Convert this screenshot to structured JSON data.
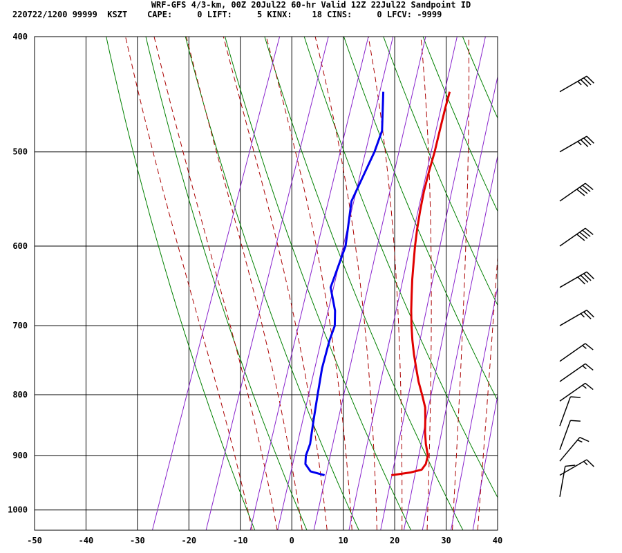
{
  "header": {
    "line1": "WRF-GFS 4/3-km, 00Z 20Jul22 60-hr Valid 12Z 22Jul22 Sandpoint ID",
    "line2": "220722/1200 99999  KSZT    CAPE:     0 LIFT:     5 KINX:    18 CINS:     0 LFCV: -9999"
  },
  "chart_data": {
    "type": "line",
    "title": "WRF-GFS 4/3-km, 00Z 20Jul22 60-hr Valid 12Z 22Jul22 Sandpoint ID",
    "xlabel": "",
    "ylabel": "",
    "xlim": [
      -50,
      40
    ],
    "ylim": [
      1040,
      400
    ],
    "yscale": "log",
    "x_ticks": [
      -50,
      -40,
      -30,
      -20,
      -10,
      0,
      10,
      20,
      30,
      40
    ],
    "y_ticks": [
      400,
      500,
      600,
      700,
      800,
      900,
      1000
    ],
    "grid": true,
    "series": [
      {
        "color": "#e00000",
        "points": [
          {
            "p": 935,
            "t": 15.5
          },
          {
            "p": 930,
            "t": 19.0
          },
          {
            "p": 925,
            "t": 21.0
          },
          {
            "p": 915,
            "t": 21.4
          },
          {
            "p": 900,
            "t": 21.2
          },
          {
            "p": 880,
            "t": 20.0
          },
          {
            "p": 860,
            "t": 19.0
          },
          {
            "p": 840,
            "t": 18.2
          },
          {
            "p": 820,
            "t": 17.3
          },
          {
            "p": 800,
            "t": 15.8
          },
          {
            "p": 780,
            "t": 14.2
          },
          {
            "p": 760,
            "t": 12.8
          },
          {
            "p": 740,
            "t": 11.4
          },
          {
            "p": 720,
            "t": 10.1
          },
          {
            "p": 700,
            "t": 8.9
          },
          {
            "p": 680,
            "t": 7.8
          },
          {
            "p": 660,
            "t": 6.8
          },
          {
            "p": 640,
            "t": 5.8
          },
          {
            "p": 620,
            "t": 4.9
          },
          {
            "p": 600,
            "t": 4.0
          },
          {
            "p": 580,
            "t": 3.2
          },
          {
            "p": 560,
            "t": 2.5
          },
          {
            "p": 540,
            "t": 1.9
          },
          {
            "p": 520,
            "t": 1.5
          },
          {
            "p": 500,
            "t": 1.2
          },
          {
            "p": 480,
            "t": 0.7
          },
          {
            "p": 460,
            "t": 0.2
          },
          {
            "p": 445,
            "t": -0.1
          }
        ]
      },
      {
        "color": "#0000ee",
        "points": [
          {
            "p": 935,
            "t": 2.5
          },
          {
            "p": 928,
            "t": -0.5
          },
          {
            "p": 915,
            "t": -2.0
          },
          {
            "p": 900,
            "t": -2.5
          },
          {
            "p": 880,
            "t": -2.5
          },
          {
            "p": 860,
            "t": -3.0
          },
          {
            "p": 840,
            "t": -3.5
          },
          {
            "p": 800,
            "t": -4.5
          },
          {
            "p": 760,
            "t": -5.5
          },
          {
            "p": 720,
            "t": -6.0
          },
          {
            "p": 700,
            "t": -6.0
          },
          {
            "p": 680,
            "t": -7.0
          },
          {
            "p": 650,
            "t": -9.5
          },
          {
            "p": 600,
            "t": -9.5
          },
          {
            "p": 550,
            "t": -11.5
          },
          {
            "p": 500,
            "t": -10.5
          },
          {
            "p": 480,
            "t": -10.5
          },
          {
            "p": 445,
            "t": -13.0
          }
        ]
      }
    ],
    "background_lines": {
      "dry_adiabats_K": [
        263,
        273,
        283,
        293,
        303,
        313,
        323,
        333,
        343,
        353,
        363,
        373
      ],
      "moist_adiabats_C": [
        -10,
        -5,
        0,
        5,
        10,
        15,
        20,
        25,
        30,
        35
      ],
      "mixing_ratios_gkg": [
        0.4,
        1,
        2,
        3,
        5,
        8,
        12,
        16,
        20,
        28,
        36
      ],
      "dry_color": "#008000",
      "moist_color": "#aa0000",
      "mixing_color": "#8822cc"
    },
    "wind_barbs": [
      {
        "p": 445,
        "dir": 240,
        "spd": 35
      },
      {
        "p": 500,
        "dir": 240,
        "spd": 35
      },
      {
        "p": 550,
        "dir": 235,
        "spd": 40
      },
      {
        "p": 600,
        "dir": 235,
        "spd": 40
      },
      {
        "p": 650,
        "dir": 240,
        "spd": 40
      },
      {
        "p": 700,
        "dir": 240,
        "spd": 25
      },
      {
        "p": 750,
        "dir": 235,
        "spd": 15
      },
      {
        "p": 780,
        "dir": 235,
        "spd": 15
      },
      {
        "p": 810,
        "dir": 235,
        "spd": 15
      },
      {
        "p": 850,
        "dir": 200,
        "spd": 10
      },
      {
        "p": 890,
        "dir": 200,
        "spd": 10
      },
      {
        "p": 910,
        "dir": 220,
        "spd": 15
      },
      {
        "p": 935,
        "dir": 240,
        "spd": 15
      },
      {
        "p": 975,
        "dir": 190,
        "spd": 10
      }
    ]
  }
}
